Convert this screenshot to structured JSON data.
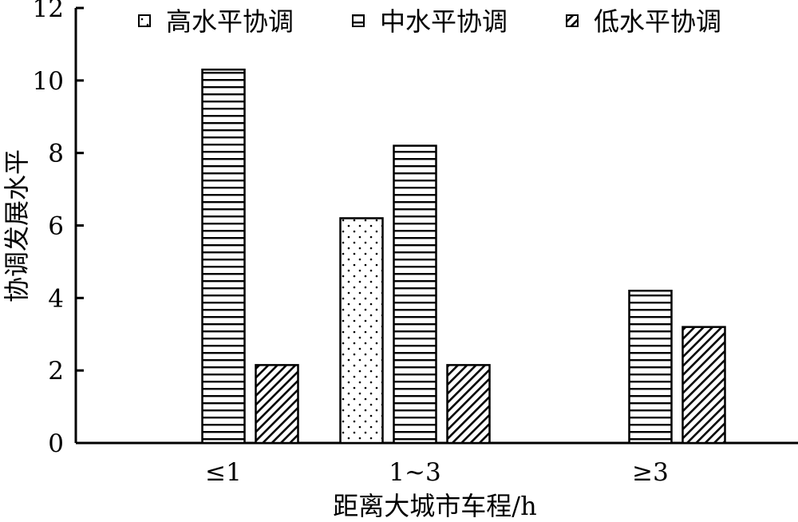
{
  "chart_data": {
    "type": "bar",
    "xlabel": "距离大城市车程/h",
    "ylabel": "协调发展水平",
    "ylim": [
      0,
      12
    ],
    "yticks": [
      0,
      2,
      4,
      6,
      8,
      10,
      12
    ],
    "categories": [
      "≤1",
      "1~3",
      "≥3"
    ],
    "legend_position": "top",
    "grid": false,
    "series": [
      {
        "name": "高水平协调",
        "pattern": "dots",
        "values": [
          null,
          6.2,
          null
        ]
      },
      {
        "name": "中水平协调",
        "pattern": "horizontal-lines",
        "values": [
          10.3,
          8.2,
          4.2
        ]
      },
      {
        "name": "低水平协调",
        "pattern": "diagonal-lines",
        "values": [
          2.15,
          2.15,
          3.2
        ]
      }
    ]
  }
}
